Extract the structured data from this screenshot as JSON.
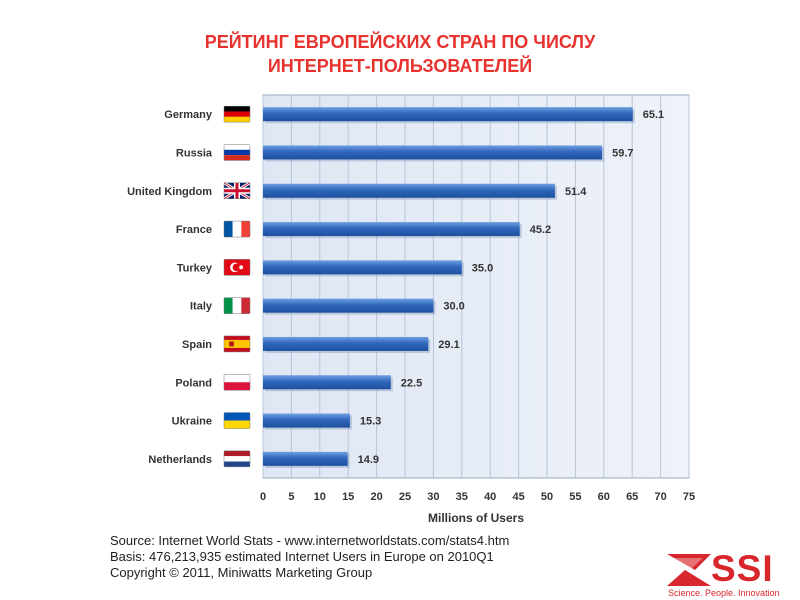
{
  "title_line1": "РЕЙТИНГ ЕВРОПЕЙСКИХ СТРАН ПО  ЧИСЛУ",
  "title_line2": "ИНТЕРНЕТ-ПОЛЬЗОВАТЕЛЕЙ",
  "chart_data": {
    "type": "bar",
    "orientation": "horizontal",
    "categories": [
      "Germany",
      "Russia",
      "United Kingdom",
      "France",
      "Turkey",
      "Italy",
      "Spain",
      "Poland",
      "Ukraine",
      "Netherlands"
    ],
    "values": [
      65.1,
      59.7,
      51.4,
      45.2,
      35.0,
      30.0,
      29.1,
      22.5,
      15.3,
      14.9
    ],
    "value_labels": [
      "65.1",
      "59.7",
      "51.4",
      "45.2",
      "35.0",
      "30.0",
      "29.1",
      "22.5",
      "15.3",
      "14.9"
    ],
    "flags": [
      "flag-germany",
      "flag-russia",
      "flag-uk",
      "flag-france",
      "flag-turkey",
      "flag-italy",
      "flag-spain",
      "flag-poland",
      "flag-ukraine",
      "flag-netherlands"
    ],
    "xlabel": "Millions of Users",
    "xlim": [
      0,
      75
    ],
    "xticks": [
      0,
      5,
      10,
      15,
      20,
      25,
      30,
      35,
      40,
      45,
      50,
      55,
      60,
      65,
      70,
      75
    ],
    "grid": true,
    "colors": {
      "bar": "#2a63b8",
      "bar_light": "#5f93da",
      "plot_bg": "#dde6f3",
      "grid": "#b8c4d6"
    }
  },
  "footer": {
    "line1": "Source: Internet World Stats  -  www.internetworldstats.com/stats4.htm",
    "line2": "Basis: 476,213,935 estimated Internet  Users in Europe on 2010Q1",
    "line3": "Copyright © 2011, Miniwatts Marketing Group"
  },
  "logo": {
    "text": "SSI",
    "tagline": "Science. People. Innovation",
    "color": "#d7262c",
    "icon": "ssi-logo-icon"
  }
}
